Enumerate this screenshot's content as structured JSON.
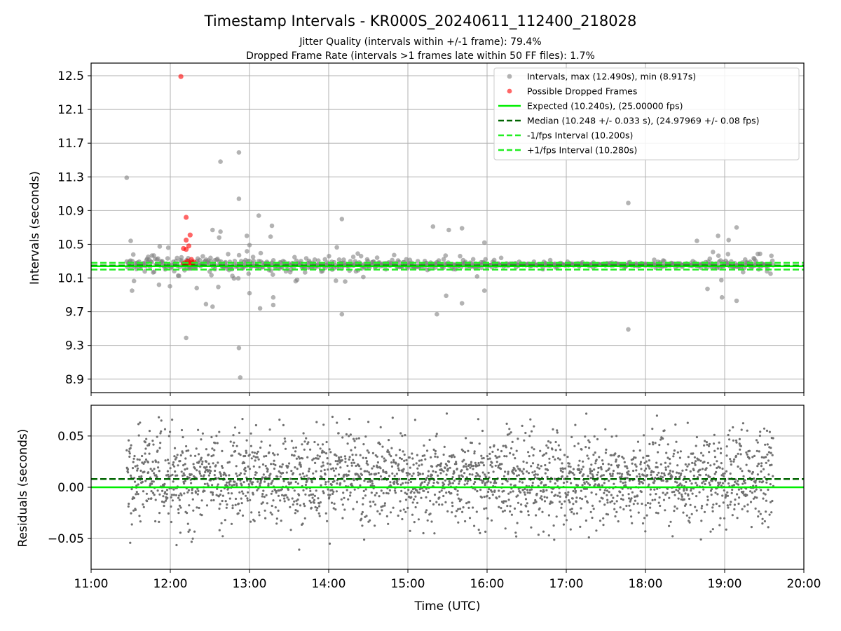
{
  "figure": {
    "title": "Timestamp Intervals - KR000S_20240611_112400_218028",
    "subtitle_1": "Jitter Quality (intervals within +/-1 frame): 79.4%",
    "subtitle_2": "Dropped Frame Rate (intervals >1 frames late within 50 FF files): 1.7%"
  },
  "chart_data": [
    {
      "type": "scatter",
      "panel": "intervals",
      "xlabel": "",
      "ylabel": "Intervals (seconds)",
      "xlim": [
        "11:00",
        "20:00"
      ],
      "ylim": [
        8.74,
        12.65
      ],
      "grid": true,
      "yticks": [
        "8.9",
        "9.3",
        "9.7",
        "10.1",
        "10.5",
        "10.9",
        "11.3",
        "11.7",
        "12.1",
        "12.5"
      ],
      "legend_position": "upper right",
      "series": [
        {
          "name": "Intervals, max (12.490s), min (8.917s)",
          "kind": "points",
          "color": "#808080",
          "x_start": "11:27",
          "x_end": "19:37",
          "typical_center": 10.26,
          "notable_points": [
            {
              "x": "11:27",
              "y": 11.29
            },
            {
              "x": "11:30",
              "y": 10.54
            },
            {
              "x": "11:31",
              "y": 9.95
            },
            {
              "x": "12:12",
              "y": 9.39
            },
            {
              "x": "12:20",
              "y": 9.98
            },
            {
              "x": "12:27",
              "y": 9.79
            },
            {
              "x": "12:32",
              "y": 9.76
            },
            {
              "x": "12:38",
              "y": 11.48
            },
            {
              "x": "12:38",
              "y": 10.65
            },
            {
              "x": "12:37",
              "y": 10.58
            },
            {
              "x": "12:32",
              "y": 10.67
            },
            {
              "x": "12:52",
              "y": 11.59
            },
            {
              "x": "12:52",
              "y": 11.04
            },
            {
              "x": "12:52",
              "y": 9.27
            },
            {
              "x": "12:53",
              "y": 8.92
            },
            {
              "x": "13:00",
              "y": 9.92
            },
            {
              "x": "12:58",
              "y": 10.6
            },
            {
              "x": "13:00",
              "y": 10.49
            },
            {
              "x": "13:08",
              "y": 9.74
            },
            {
              "x": "13:07",
              "y": 10.84
            },
            {
              "x": "13:16",
              "y": 10.59
            },
            {
              "x": "13:17",
              "y": 10.72
            },
            {
              "x": "13:18",
              "y": 9.78
            },
            {
              "x": "13:18",
              "y": 9.87
            },
            {
              "x": "14:10",
              "y": 10.8
            },
            {
              "x": "14:10",
              "y": 9.67
            },
            {
              "x": "15:19",
              "y": 10.71
            },
            {
              "x": "15:22",
              "y": 9.67
            },
            {
              "x": "15:29",
              "y": 9.89
            },
            {
              "x": "15:31",
              "y": 10.67
            },
            {
              "x": "15:41",
              "y": 9.8
            },
            {
              "x": "15:41",
              "y": 10.69
            },
            {
              "x": "15:58",
              "y": 10.52
            },
            {
              "x": "15:58",
              "y": 9.95
            },
            {
              "x": "17:47",
              "y": 10.99
            },
            {
              "x": "17:47",
              "y": 9.49
            },
            {
              "x": "18:39",
              "y": 10.54
            },
            {
              "x": "18:47",
              "y": 9.97
            },
            {
              "x": "18:55",
              "y": 10.6
            },
            {
              "x": "18:58",
              "y": 9.87
            },
            {
              "x": "19:03",
              "y": 10.55
            },
            {
              "x": "19:09",
              "y": 10.7
            },
            {
              "x": "19:09",
              "y": 9.83
            }
          ]
        },
        {
          "name": "Possible Dropped Frames",
          "kind": "points",
          "color": "#ff0000",
          "points": [
            {
              "x": "12:08",
              "y": 12.49
            },
            {
              "x": "12:12",
              "y": 10.82
            },
            {
              "x": "12:15",
              "y": 10.61
            },
            {
              "x": "12:12",
              "y": 10.55
            },
            {
              "x": "12:10",
              "y": 10.45
            },
            {
              "x": "12:12",
              "y": 10.44
            },
            {
              "x": "12:14",
              "y": 10.48
            },
            {
              "x": "12:16",
              "y": 10.32
            },
            {
              "x": "12:10",
              "y": 10.27
            },
            {
              "x": "12:11",
              "y": 10.28
            },
            {
              "x": "12:12",
              "y": 10.27
            },
            {
              "x": "12:13",
              "y": 10.27
            },
            {
              "x": "12:15",
              "y": 10.28
            },
            {
              "x": "12:16",
              "y": 10.27
            },
            {
              "x": "12:17",
              "y": 10.28
            },
            {
              "x": "12:18",
              "y": 10.29
            },
            {
              "x": "12:13",
              "y": 10.3
            }
          ]
        },
        {
          "name": "Expected (10.240s), (25.00000 fps)",
          "kind": "hline",
          "y": 10.24,
          "color": "#00ee00",
          "style": "solid"
        },
        {
          "name": "Median (10.248 +/- 0.033 s), (24.97969 +/- 0.08 fps)",
          "kind": "hline",
          "y": 10.248,
          "color": "#006400",
          "style": "dashed"
        },
        {
          "name": "-1/fps Interval (10.200s)",
          "kind": "hline",
          "y": 10.2,
          "color": "#22ee22",
          "style": "dashed"
        },
        {
          "name": "+1/fps Interval (10.280s)",
          "kind": "hline",
          "y": 10.28,
          "color": "#22ee22",
          "style": "dashed"
        }
      ]
    },
    {
      "type": "scatter",
      "panel": "residuals",
      "xlabel": "Time (UTC)",
      "ylabel": "Residuals (seconds)",
      "xlim": [
        "11:00",
        "20:00"
      ],
      "ylim": [
        -0.08,
        0.08
      ],
      "grid": true,
      "xticks": [
        "11:00",
        "12:00",
        "13:00",
        "14:00",
        "15:00",
        "16:00",
        "17:00",
        "18:00",
        "19:00",
        "20:00"
      ],
      "yticks": [
        "0.05",
        "0.00",
        "−0.05"
      ],
      "ytick_values": [
        0.05,
        0.0,
        -0.05
      ],
      "series": [
        {
          "name": "",
          "kind": "points",
          "color": "#707070",
          "x_start": "11:27",
          "x_end": "19:37",
          "typical_center": 0.008,
          "typical_spread": 0.03,
          "y_min_visible": -0.08,
          "y_max_visible": 0.08
        },
        {
          "name": "",
          "kind": "hline",
          "y": 0.0,
          "color": "#00ee00",
          "style": "solid"
        },
        {
          "name": "",
          "kind": "hline",
          "y": 0.008,
          "color": "#006400",
          "style": "dashed"
        }
      ]
    }
  ]
}
